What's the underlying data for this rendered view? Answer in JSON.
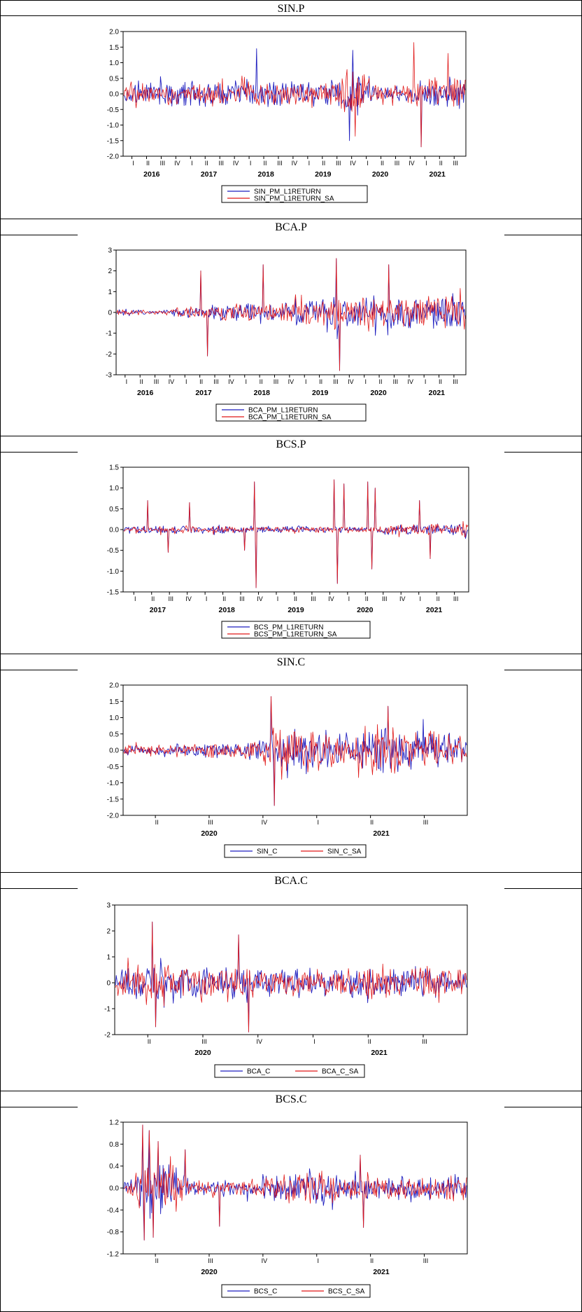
{
  "chart_data": [
    {
      "title": "SIN.P",
      "type": "line",
      "ylim": [
        -2.0,
        2.0
      ],
      "yticks": [
        "2.0",
        "1.5",
        "1.0",
        "0.5",
        "0.0",
        "-0.5",
        "-1.0",
        "-1.5",
        "-2.0"
      ],
      "xaxis_quarters": [
        "I",
        "II",
        "III",
        "IV",
        "I",
        "II",
        "III",
        "IV",
        "I",
        "II",
        "III",
        "IV",
        "I",
        "II",
        "III",
        "IV",
        "I",
        "II",
        "III",
        "IV",
        "I",
        "II",
        "III"
      ],
      "xaxis_years": [
        "2016",
        "2017",
        "2018",
        "2019",
        "2020",
        "2021"
      ],
      "series": [
        {
          "name": "SIN_PM_L1RETURN",
          "color": "#1f1fbf",
          "amplitude_profile": [
            0.35,
            0.45,
            0.45,
            0.45,
            0.45,
            0.45,
            0.5,
            0.5,
            0.55,
            0.5,
            0.45,
            0.45,
            0.5,
            0.45,
            0.5,
            0.9,
            1.0,
            0.3,
            0.25,
            0.3,
            0.55,
            0.6,
            0.55,
            0.5
          ],
          "spikes": [
            [
              0.39,
              1.45
            ],
            [
              0.66,
              -1.5
            ],
            [
              0.67,
              1.4
            ],
            [
              0.87,
              -1.7
            ]
          ]
        },
        {
          "name": "SIN_PM_L1RETURN_SA",
          "color": "#e01818",
          "amplitude_profile": [
            0.3,
            0.4,
            0.4,
            0.4,
            0.4,
            0.45,
            0.45,
            0.45,
            0.5,
            0.45,
            0.4,
            0.4,
            0.45,
            0.4,
            0.45,
            0.85,
            0.95,
            0.3,
            0.25,
            0.3,
            0.55,
            0.6,
            0.55,
            0.5
          ],
          "spikes": [
            [
              0.85,
              1.65
            ],
            [
              0.87,
              -1.7
            ],
            [
              0.95,
              1.3
            ]
          ]
        }
      ],
      "legend": [
        "SIN_PM_L1RETURN",
        "SIN_PM_L1RETURN_SA"
      ]
    },
    {
      "title": "BCA.P",
      "type": "line",
      "ylim": [
        -3,
        3
      ],
      "yticks": [
        "3",
        "2",
        "1",
        "0",
        "-1",
        "-2",
        "-3"
      ],
      "xaxis_quarters": [
        "I",
        "II",
        "III",
        "IV",
        "I",
        "II",
        "III",
        "IV",
        "I",
        "II",
        "III",
        "IV",
        "I",
        "II",
        "III",
        "IV",
        "I",
        "II",
        "III",
        "IV",
        "I",
        "II",
        "III"
      ],
      "xaxis_years": [
        "2016",
        "2017",
        "2018",
        "2019",
        "2020",
        "2021"
      ],
      "series": [
        {
          "name": "BCA_PM_L1RETURN",
          "color": "#1f1fbf",
          "amplitude_profile": [
            0.15,
            0.2,
            0.1,
            0.1,
            0.3,
            0.35,
            0.35,
            0.5,
            0.55,
            0.5,
            0.5,
            0.55,
            0.8,
            0.9,
            0.9,
            0.9,
            0.9,
            0.9,
            0.9,
            1.0,
            0.95,
            0.95,
            0.95,
            0.9
          ],
          "spikes": [
            [
              0.24,
              2.0
            ],
            [
              0.26,
              -2.1
            ],
            [
              0.42,
              2.3
            ],
            [
              0.63,
              2.6
            ],
            [
              0.64,
              -2.8
            ],
            [
              0.78,
              2.3
            ]
          ]
        },
        {
          "name": "BCA_PM_L1RETURN_SA",
          "color": "#e01818",
          "amplitude_profile": [
            0.15,
            0.2,
            0.1,
            0.1,
            0.3,
            0.35,
            0.35,
            0.5,
            0.55,
            0.5,
            0.5,
            0.55,
            0.8,
            0.9,
            0.9,
            0.9,
            0.9,
            0.9,
            0.9,
            1.0,
            0.95,
            0.95,
            0.95,
            0.9
          ],
          "spikes": [
            [
              0.24,
              2.0
            ],
            [
              0.26,
              -2.1
            ],
            [
              0.42,
              2.3
            ],
            [
              0.63,
              2.6
            ],
            [
              0.64,
              -2.8
            ],
            [
              0.78,
              2.3
            ]
          ]
        }
      ],
      "legend": [
        "BCA_PM_L1RETURN",
        "BCA_PM_L1RETURN_SA"
      ]
    },
    {
      "title": "BCS.P",
      "type": "line",
      "ylim": [
        -1.5,
        1.5
      ],
      "yticks": [
        "1.5",
        "1.0",
        "0.5",
        "0.0",
        "-0.5",
        "-1.0",
        "-1.5"
      ],
      "xaxis_quarters": [
        "I",
        "II",
        "III",
        "IV",
        "I",
        "II",
        "III",
        "IV",
        "I",
        "II",
        "III",
        "IV",
        "I",
        "II",
        "III",
        "IV",
        "I",
        "II",
        "III"
      ],
      "xaxis_years": [
        "2017",
        "2018",
        "2019",
        "2020",
        "2021"
      ],
      "series": [
        {
          "name": "BCS_PM_L1RETURN",
          "color": "#1f1fbf",
          "amplitude_profile": [
            0.1,
            0.1,
            0.1,
            0.1,
            0.1,
            0.1,
            0.1,
            0.1,
            0.1,
            0.1,
            0.1,
            0.1,
            0.1,
            0.1,
            0.1,
            0.15,
            0.15,
            0.15,
            0.15,
            0.2
          ],
          "spikes": [
            [
              0.07,
              0.7
            ],
            [
              0.13,
              -0.55
            ],
            [
              0.19,
              0.65
            ],
            [
              0.35,
              -0.5
            ],
            [
              0.38,
              1.15
            ],
            [
              0.385,
              -1.4
            ],
            [
              0.61,
              1.2
            ],
            [
              0.62,
              -1.3
            ],
            [
              0.64,
              1.1
            ],
            [
              0.71,
              1.15
            ],
            [
              0.72,
              -0.95
            ],
            [
              0.73,
              1.0
            ],
            [
              0.86,
              0.7
            ],
            [
              0.89,
              -0.7
            ]
          ]
        },
        {
          "name": "BCS_PM_L1RETURN_SA",
          "color": "#e01818",
          "amplitude_profile": [
            0.1,
            0.1,
            0.1,
            0.1,
            0.1,
            0.1,
            0.1,
            0.1,
            0.1,
            0.1,
            0.1,
            0.1,
            0.1,
            0.1,
            0.1,
            0.15,
            0.15,
            0.15,
            0.15,
            0.2
          ],
          "spikes": [
            [
              0.07,
              0.7
            ],
            [
              0.13,
              -0.55
            ],
            [
              0.19,
              0.65
            ],
            [
              0.35,
              -0.5
            ],
            [
              0.38,
              1.15
            ],
            [
              0.385,
              -1.4
            ],
            [
              0.61,
              1.2
            ],
            [
              0.62,
              -1.3
            ],
            [
              0.64,
              1.1
            ],
            [
              0.71,
              1.15
            ],
            [
              0.72,
              -0.95
            ],
            [
              0.73,
              1.0
            ],
            [
              0.86,
              0.7
            ],
            [
              0.89,
              -0.7
            ]
          ]
        }
      ],
      "legend": [
        "BCS_PM_L1RETURN",
        "BCS_PM_L1RETURN_SA"
      ]
    },
    {
      "title": "SIN.C",
      "type": "line",
      "ylim": [
        -2.0,
        2.0
      ],
      "yticks": [
        "2.0",
        "1.5",
        "1.0",
        "0.5",
        "0.0",
        "-0.5",
        "-1.0",
        "-1.5",
        "-2.0"
      ],
      "xaxis_quarters": [
        "II",
        "III",
        "IV",
        "I",
        "II",
        "III"
      ],
      "xaxis_years": [
        "2020",
        "2021"
      ],
      "series": [
        {
          "name": "SIN_C",
          "color": "#1f1fbf",
          "amplitude_profile": [
            0.2,
            0.2,
            0.2,
            0.25,
            0.25,
            0.3,
            0.4,
            0.8,
            0.9,
            0.6,
            0.6,
            0.9,
            0.9,
            0.8,
            0.6,
            0.5
          ],
          "spikes": [
            [
              0.43,
              1.65
            ],
            [
              0.44,
              -1.7
            ],
            [
              0.77,
              1.35
            ]
          ]
        },
        {
          "name": "SIN_C_SA",
          "color": "#e01818",
          "amplitude_profile": [
            0.2,
            0.2,
            0.2,
            0.25,
            0.25,
            0.3,
            0.4,
            0.8,
            0.9,
            0.6,
            0.6,
            0.9,
            0.9,
            0.8,
            0.6,
            0.5
          ],
          "spikes": [
            [
              0.43,
              1.65
            ],
            [
              0.44,
              -1.7
            ],
            [
              0.77,
              1.35
            ]
          ]
        }
      ],
      "legend": [
        "SIN_C",
        "SIN_C_SA"
      ]
    },
    {
      "title": "BCA.C",
      "type": "line",
      "ylim": [
        -2,
        3
      ],
      "yticks": [
        "3",
        "2",
        "1",
        "0",
        "-1",
        "-2"
      ],
      "xaxis_quarters": [
        "II",
        "III",
        "IV",
        "I",
        "II",
        "III"
      ],
      "xaxis_years": [
        "2020",
        "2021"
      ],
      "series": [
        {
          "name": "BCA_C",
          "color": "#1f1fbf",
          "amplitude_profile": [
            0.5,
            0.8,
            1.0,
            0.8,
            0.8,
            0.7,
            0.7,
            0.6,
            0.6,
            0.6,
            0.6,
            0.7,
            0.7,
            0.7,
            0.6,
            0.6
          ],
          "spikes": [
            [
              0.105,
              2.35
            ],
            [
              0.115,
              -1.7
            ],
            [
              0.35,
              1.85
            ],
            [
              0.38,
              -1.9
            ]
          ]
        },
        {
          "name": "BCA_C_SA",
          "color": "#e01818",
          "amplitude_profile": [
            0.5,
            0.8,
            1.0,
            0.8,
            0.8,
            0.7,
            0.7,
            0.6,
            0.6,
            0.6,
            0.6,
            0.7,
            0.7,
            0.7,
            0.6,
            0.6
          ],
          "spikes": [
            [
              0.105,
              2.35
            ],
            [
              0.115,
              -1.7
            ],
            [
              0.35,
              1.85
            ],
            [
              0.38,
              -1.9
            ]
          ]
        }
      ],
      "legend": [
        "BCA_C",
        "BCA_C_SA"
      ]
    },
    {
      "title": "BCS.C",
      "type": "line",
      "ylim": [
        -1.2,
        1.2
      ],
      "yticks": [
        "1.2",
        "0.8",
        "0.4",
        "0.0",
        "-0.4",
        "-0.8",
        "-1.2"
      ],
      "xaxis_quarters": [
        "II",
        "III",
        "IV",
        "I",
        "II",
        "III"
      ],
      "xaxis_years": [
        "2020",
        "2021"
      ],
      "series": [
        {
          "name": "BCS_C",
          "color": "#1f1fbf",
          "amplitude_profile": [
            0.1,
            0.6,
            0.6,
            0.15,
            0.15,
            0.15,
            0.2,
            0.3,
            0.4,
            0.3,
            0.25,
            0.25,
            0.25,
            0.25,
            0.25,
            0.3
          ],
          "spikes": [
            [
              0.055,
              1.15
            ],
            [
              0.06,
              -0.95
            ],
            [
              0.075,
              1.05
            ],
            [
              0.085,
              -0.9
            ],
            [
              0.1,
              0.85
            ],
            [
              0.18,
              0.7
            ],
            [
              0.28,
              -0.7
            ],
            [
              0.69,
              0.6
            ],
            [
              0.7,
              -0.72
            ]
          ]
        },
        {
          "name": "BCS_C_SA",
          "color": "#e01818",
          "amplitude_profile": [
            0.1,
            0.6,
            0.6,
            0.15,
            0.15,
            0.15,
            0.2,
            0.3,
            0.4,
            0.3,
            0.25,
            0.25,
            0.25,
            0.25,
            0.25,
            0.3
          ],
          "spikes": [
            [
              0.055,
              1.15
            ],
            [
              0.06,
              -0.95
            ],
            [
              0.075,
              1.05
            ],
            [
              0.085,
              -0.9
            ],
            [
              0.1,
              0.85
            ],
            [
              0.18,
              0.7
            ],
            [
              0.28,
              -0.7
            ],
            [
              0.69,
              0.6
            ],
            [
              0.7,
              -0.72
            ]
          ]
        }
      ],
      "legend": [
        "BCS_C",
        "BCS_C_SA"
      ]
    }
  ]
}
